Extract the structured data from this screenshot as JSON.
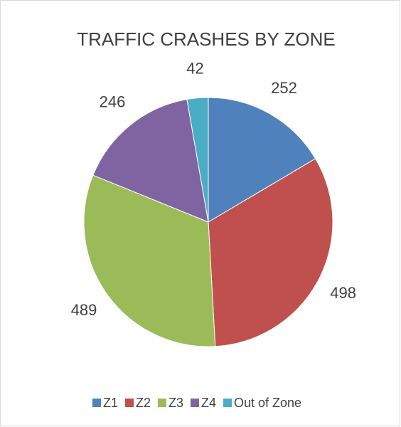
{
  "chart_data": {
    "type": "pie",
    "title": "TRAFFIC CRASHES BY ZONE",
    "categories": [
      "Z1",
      "Z2",
      "Z3",
      "Z4",
      "Out of Zone"
    ],
    "values": [
      252,
      498,
      489,
      246,
      42
    ],
    "colors": [
      "#4f81bd",
      "#c0504d",
      "#9bbb59",
      "#8064a2",
      "#4bacc6"
    ],
    "legend": "bottom"
  }
}
